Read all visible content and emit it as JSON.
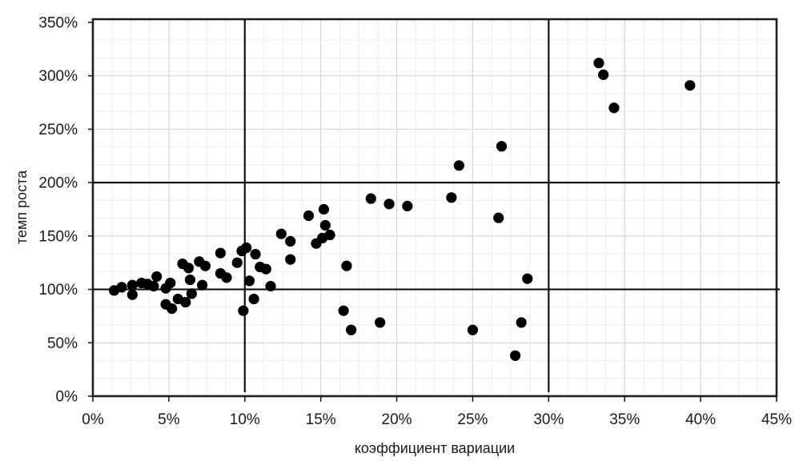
{
  "chart_data": {
    "type": "scatter",
    "title": "",
    "xlabel": "коэффициент вариации",
    "ylabel": "темп роста",
    "xlim": [
      0,
      45
    ],
    "ylim": [
      0,
      350
    ],
    "x_tick_values": [
      0,
      5,
      10,
      15,
      20,
      25,
      30,
      35,
      40,
      45
    ],
    "x_tick_labels": [
      "0%",
      "5%",
      "10%",
      "15%",
      "20%",
      "25%",
      "30%",
      "35%",
      "40%",
      "45%"
    ],
    "y_tick_values": [
      0,
      50,
      100,
      150,
      200,
      250,
      300,
      350
    ],
    "y_tick_labels": [
      "0%",
      "50%",
      "100%",
      "150%",
      "200%",
      "250%",
      "300%",
      "350%"
    ],
    "x_minor_step": 1.25,
    "y_minor_step": 16.667,
    "grid": true,
    "legend_visible": false,
    "reference_lines": {
      "vertical_x": [
        10,
        30
      ],
      "horizontal_y": [
        100,
        200
      ]
    },
    "points": [
      [
        1.4,
        99
      ],
      [
        1.9,
        102
      ],
      [
        2.6,
        104
      ],
      [
        2.6,
        95
      ],
      [
        3.2,
        106
      ],
      [
        3.6,
        105
      ],
      [
        4.0,
        103
      ],
      [
        4.2,
        112
      ],
      [
        4.8,
        101
      ],
      [
        5.1,
        106
      ],
      [
        4.8,
        86
      ],
      [
        5.2,
        82
      ],
      [
        5.6,
        91
      ],
      [
        6.1,
        88
      ],
      [
        6.5,
        96
      ],
      [
        5.9,
        124
      ],
      [
        6.3,
        120
      ],
      [
        7.0,
        126
      ],
      [
        7.4,
        122
      ],
      [
        6.4,
        109
      ],
      [
        7.2,
        104
      ],
      [
        8.4,
        134
      ],
      [
        8.4,
        115
      ],
      [
        8.8,
        111
      ],
      [
        9.5,
        125
      ],
      [
        9.8,
        136
      ],
      [
        10.1,
        139
      ],
      [
        10.7,
        133
      ],
      [
        9.9,
        80
      ],
      [
        10.3,
        108
      ],
      [
        10.6,
        91
      ],
      [
        11.0,
        121
      ],
      [
        11.4,
        119
      ],
      [
        11.7,
        103
      ],
      [
        12.4,
        152
      ],
      [
        13.0,
        145
      ],
      [
        13.0,
        128
      ],
      [
        14.2,
        169
      ],
      [
        15.2,
        175
      ],
      [
        14.7,
        143
      ],
      [
        15.1,
        148
      ],
      [
        15.3,
        160
      ],
      [
        15.6,
        151
      ],
      [
        16.7,
        122
      ],
      [
        16.5,
        80
      ],
      [
        17.0,
        62
      ],
      [
        18.3,
        185
      ],
      [
        18.9,
        69
      ],
      [
        19.5,
        180
      ],
      [
        20.7,
        178
      ],
      [
        23.6,
        186
      ],
      [
        24.1,
        216
      ],
      [
        25.0,
        62
      ],
      [
        26.9,
        234
      ],
      [
        26.7,
        167
      ],
      [
        27.8,
        38
      ],
      [
        28.2,
        69
      ],
      [
        28.6,
        110
      ],
      [
        33.3,
        312
      ],
      [
        33.6,
        301
      ],
      [
        34.3,
        270
      ],
      [
        39.3,
        291
      ]
    ]
  },
  "colors": {
    "marker": "#000000",
    "grid_minor": "#efefef",
    "grid_major": "#d7d7d7",
    "axis": "#1f1f1f",
    "reference_line": "#111111",
    "text": "#1a1a1a",
    "background": "#ffffff"
  }
}
